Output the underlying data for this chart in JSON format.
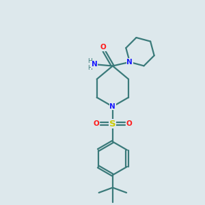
{
  "background_color": "#dde8ec",
  "bond_color": "#3a7a7a",
  "N_color": "#1a1aff",
  "O_color": "#ff1a1a",
  "S_color": "#cccc00",
  "line_width": 1.6,
  "figsize": [
    3.0,
    3.0
  ],
  "dpi": 100,
  "xlim": [
    0,
    10
  ],
  "ylim": [
    0,
    10
  ]
}
